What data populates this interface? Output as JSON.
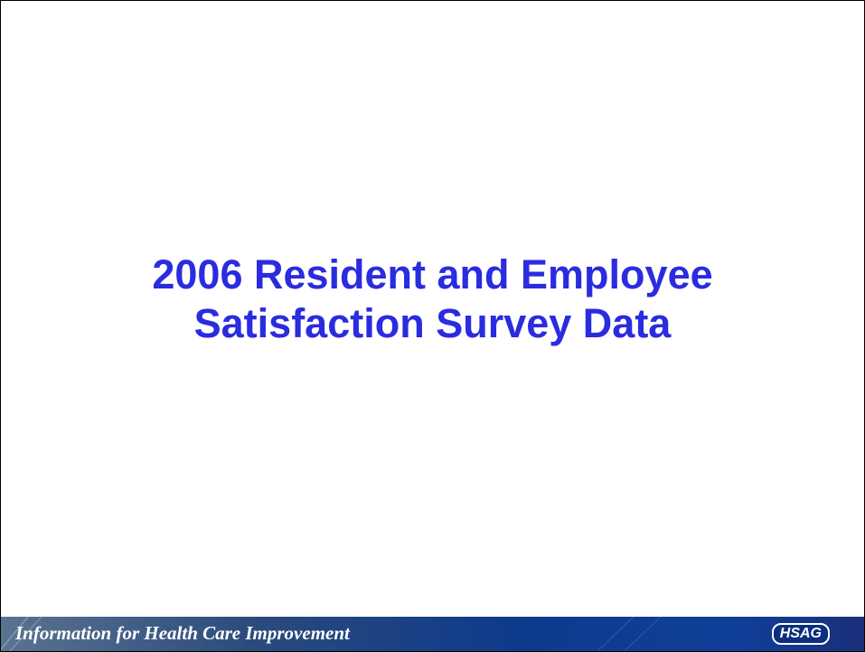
{
  "slide": {
    "title_line1": "2006 Resident and Employee",
    "title_line2": "Satisfaction Survey Data",
    "footer_tagline": "Information for Health Care Improvement",
    "logo": "HSAG"
  }
}
